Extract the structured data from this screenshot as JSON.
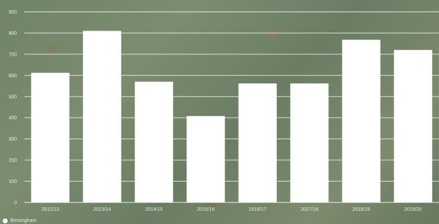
{
  "chart_data": {
    "type": "bar",
    "categories": [
      "2012/13",
      "2013/14",
      "2014/15",
      "2015/16",
      "2016/17",
      "2017/18",
      "2018/19",
      "2019/20"
    ],
    "series": [
      {
        "name": "Birmingham",
        "values": [
          612,
          810,
          570,
          408,
          562,
          562,
          768,
          720
        ]
      }
    ],
    "ylim": [
      0,
      900
    ],
    "yticks": [
      0,
      100,
      200,
      300,
      400,
      500,
      600,
      700,
      800,
      900
    ],
    "grid": true,
    "legend": "bottom-left",
    "colors": {
      "bar": "#ffffff",
      "grid": "#ffffff",
      "text": "#e8ece4"
    }
  }
}
